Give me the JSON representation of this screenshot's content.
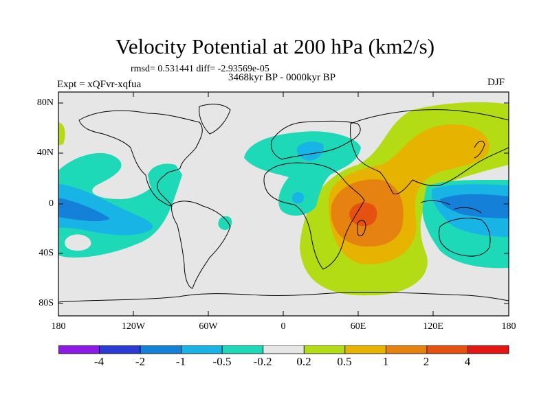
{
  "title": "Velocity Potential at 200 hPa (km2/s)",
  "stats": "rmsd= 0.531441  diff= -2.93569e-05",
  "period": "3468kyr BP - 0000kyr BP",
  "experiment": "Expt = xQFvr-xqfua",
  "season": "DJF",
  "map": {
    "lat_labels": [
      "80N",
      "40N",
      "0",
      "40S",
      "80S"
    ],
    "lon_labels": [
      "180",
      "120W",
      "60W",
      "0",
      "60E",
      "120E",
      "180"
    ],
    "colors": {
      "land_fill": "#e6e6e6",
      "coast": "#000000"
    }
  },
  "colorbar": {
    "labels": [
      "-4",
      "-2",
      "-1",
      "-0.5",
      "-0.2",
      "0.2",
      "0.5",
      "1",
      "2",
      "4"
    ],
    "colors": [
      "#8b1ae6",
      "#2c3ad6",
      "#1480d8",
      "#18b4e6",
      "#1ed9b8",
      "#e6e6e6",
      "#b4dc14",
      "#e6b400",
      "#e68210",
      "#e65010",
      "#e61414"
    ]
  }
}
